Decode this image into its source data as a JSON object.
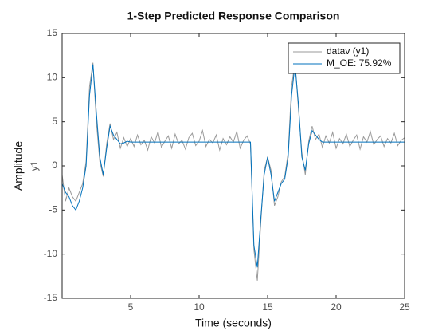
{
  "chart_data": {
    "type": "line",
    "title": "1-Step Predicted Response Comparison",
    "xlabel": "Time (seconds)",
    "ylabel": "Amplitude",
    "output_name": "y1",
    "xlim": [
      0,
      25
    ],
    "xticks": [
      5,
      10,
      15,
      20,
      25
    ],
    "ylim": [
      -15,
      15
    ],
    "yticks": [
      -15,
      -10,
      -5,
      0,
      5,
      10,
      15
    ],
    "grid": false,
    "legend": "upper right",
    "x": [
      0,
      0.25,
      0.5,
      0.75,
      1,
      1.25,
      1.5,
      1.75,
      2,
      2.25,
      2.5,
      2.75,
      3,
      3.25,
      3.5,
      3.75,
      4,
      4.25,
      4.5,
      4.75,
      5,
      5.25,
      5.5,
      5.75,
      6,
      6.25,
      6.5,
      6.75,
      7,
      7.25,
      7.5,
      7.75,
      8,
      8.25,
      8.5,
      8.75,
      9,
      9.25,
      9.5,
      9.75,
      10,
      10.25,
      10.5,
      10.75,
      11,
      11.25,
      11.5,
      11.75,
      12,
      12.25,
      12.5,
      12.75,
      13,
      13.25,
      13.5,
      13.75,
      14,
      14.25,
      14.5,
      14.75,
      15,
      15.25,
      15.5,
      15.75,
      16,
      16.25,
      16.5,
      16.75,
      17,
      17.25,
      17.5,
      17.75,
      18,
      18.25,
      18.5,
      18.75,
      19,
      19.25,
      19.5,
      19.75,
      20,
      20.25,
      20.5,
      20.75,
      21,
      21.25,
      21.5,
      21.75,
      22,
      22.25,
      22.5,
      22.75,
      23,
      23.25,
      23.5,
      23.75,
      24,
      24.25,
      24.5,
      24.75,
      25
    ],
    "series": [
      {
        "name": "datav (y1)",
        "color": "#9a9a9a",
        "values": [
          -1,
          -4,
          -2.5,
          -3.5,
          -4,
          -3,
          -2,
          0.5,
          9,
          11.7,
          5,
          0.5,
          -1.2,
          2.5,
          4.8,
          3,
          3.8,
          2,
          3.2,
          2.2,
          3.1,
          2.2,
          3.5,
          2.4,
          2.9,
          1.8,
          3.3,
          2.6,
          3.9,
          2.1,
          2.8,
          3.4,
          2.0,
          3.6,
          2.5,
          2.9,
          1.9,
          3.2,
          3.7,
          2.3,
          2.8,
          4.0,
          2.2,
          3.0,
          2.6,
          3.5,
          1.8,
          3.1,
          2.4,
          3.3,
          2.7,
          3.9,
          2.0,
          2.9,
          3.4,
          2.5,
          -9.5,
          -13,
          -6.5,
          -0.5,
          1,
          -0.5,
          -4.5,
          -3.5,
          -1.8,
          -1.2,
          1.5,
          9,
          11.8,
          6.5,
          1.5,
          -1,
          2.8,
          4.5,
          3,
          3.6,
          2.1,
          3.4,
          2.6,
          3.8,
          2.0,
          3.1,
          2.5,
          3.6,
          2.2,
          2.9,
          3.5,
          1.9,
          3.3,
          2.7,
          3.9,
          2.4,
          3.0,
          3.4,
          2.2,
          3.1,
          2.6,
          3.7,
          2.3,
          2.9,
          3.2
        ]
      },
      {
        "name": "M_OE: 75.92%",
        "color": "#0072bd",
        "values": [
          -2,
          -3,
          -3.5,
          -4.5,
          -5,
          -4,
          -2.5,
          0,
          8,
          11.5,
          6,
          1,
          -1,
          2,
          4.5,
          3.5,
          3,
          2.5,
          2.6,
          2.8,
          2.7,
          2.7,
          2.7,
          2.7,
          2.7,
          2.7,
          2.7,
          2.7,
          2.7,
          2.7,
          2.7,
          2.7,
          2.7,
          2.7,
          2.7,
          2.7,
          2.7,
          2.7,
          2.7,
          2.7,
          2.7,
          2.7,
          2.7,
          2.7,
          2.7,
          2.7,
          2.7,
          2.7,
          2.7,
          2.7,
          2.7,
          2.7,
          2.7,
          2.7,
          2.7,
          2.7,
          -9,
          -11.5,
          -6,
          -1,
          1,
          -1,
          -4,
          -3,
          -2,
          -1.5,
          1,
          8,
          11.5,
          7,
          1,
          -0.5,
          2.5,
          4,
          3.5,
          3,
          2.7,
          2.7,
          2.7,
          2.7,
          2.7,
          2.7,
          2.7,
          2.7,
          2.7,
          2.7,
          2.7,
          2.7,
          2.7,
          2.7,
          2.7,
          2.7,
          2.7,
          2.7,
          2.7,
          2.7,
          2.7,
          2.7,
          2.7,
          2.7,
          2.7
        ]
      }
    ]
  }
}
